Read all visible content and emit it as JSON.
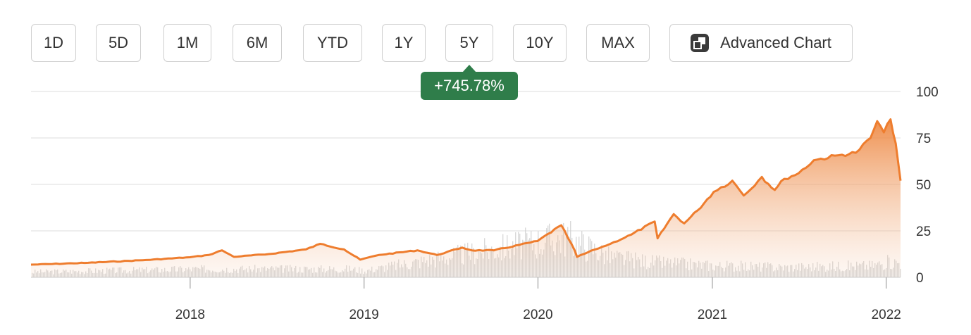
{
  "toolbar": {
    "ranges": [
      {
        "label": "1D",
        "active": false
      },
      {
        "label": "5D",
        "active": false
      },
      {
        "label": "1M",
        "active": false
      },
      {
        "label": "6M",
        "active": false
      },
      {
        "label": "YTD",
        "active": false
      },
      {
        "label": "1Y",
        "active": false
      },
      {
        "label": "5Y",
        "active": true
      },
      {
        "label": "10Y",
        "active": false
      },
      {
        "label": "MAX",
        "active": false
      }
    ],
    "advanced_label": "Advanced Chart",
    "advanced_icon": "expand-icon"
  },
  "tooltip": {
    "text": "+745.78%"
  },
  "colors": {
    "line": "#ee7d2e",
    "area_top": "#ee8a45",
    "volume": "#cccccc",
    "tooltip_bg": "#2f7d4a",
    "active_button": "#4f4f4f"
  },
  "chart_data": {
    "type": "area",
    "title": "",
    "xlabel": "",
    "ylabel": "",
    "x_ticks": [
      "2018",
      "2019",
      "2020",
      "2021",
      "2022"
    ],
    "y_ticks": [
      "0",
      "25",
      "50",
      "75",
      "100"
    ],
    "xlim": [
      "2017-02-01",
      "2022-01-31"
    ],
    "ylim": [
      0,
      100
    ],
    "y_axis_side": "right",
    "grid": true,
    "series": [
      {
        "x": [
          "2017-02-01",
          "2017-06-01",
          "2017-10-01",
          "2018-01-01",
          "2018-02-09",
          "2018-03-09",
          "2018-04-03",
          "2018-06-15",
          "2018-09-01",
          "2018-10-01",
          "2018-11-20",
          "2018-12-24",
          "2019-02-01",
          "2019-04-23",
          "2019-06-03",
          "2019-07-26",
          "2019-08-15",
          "2019-10-01",
          "2019-12-31",
          "2020-02-19",
          "2020-03-18",
          "2020-03-23",
          "2020-04-30",
          "2020-06-01",
          "2020-07-15",
          "2020-09-02",
          "2020-09-08",
          "2020-10-12",
          "2020-11-03",
          "2020-12-01",
          "2021-01-04",
          "2021-02-12",
          "2021-03-08",
          "2021-04-15",
          "2021-05-12",
          "2021-06-01",
          "2021-07-01",
          "2021-08-02",
          "2021-09-30",
          "2021-10-29",
          "2021-11-29",
          "2021-12-13",
          "2021-12-27",
          "2022-01-10",
          "2022-01-21",
          "2022-01-31"
        ],
        "values": [
          6.8,
          7.8,
          9.3,
          10.8,
          12,
          14.5,
          11,
          12.5,
          15,
          18,
          15,
          9.5,
          12,
          14.5,
          12,
          16,
          14.5,
          14.5,
          19.5,
          28,
          14.5,
          11,
          15,
          18,
          23,
          30,
          21,
          34,
          29,
          36,
          46,
          52,
          44,
          54,
          47,
          53,
          56,
          63,
          66,
          67,
          75,
          84,
          78,
          85,
          72,
          52
        ]
      }
    ],
    "volume_series": {
      "x": [
        "2017",
        "2018-02",
        "2018-12",
        "2019",
        "2020-03",
        "2020-06",
        "2020-09",
        "2021",
        "2021-06",
        "2021-12",
        "2022-01"
      ],
      "values": [
        3,
        5,
        5,
        4,
        24,
        12,
        9,
        7,
        6,
        7,
        9
      ]
    }
  }
}
